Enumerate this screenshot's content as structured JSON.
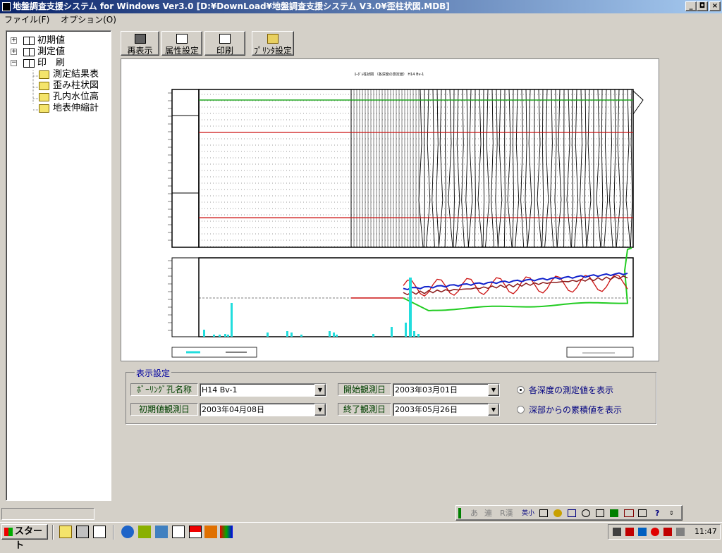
{
  "window": {
    "title": "地盤調査支援システム for Windows Ver3.0 [D:¥DownLoad¥地盤調査支援システム V3.0¥歪柱状図.MDB]",
    "controls": [
      "_",
      "◘",
      "×"
    ]
  },
  "menu": [
    {
      "label": "ファイル(F)"
    },
    {
      "label": "オプション(O)"
    }
  ],
  "tree": [
    {
      "label": "初期値",
      "expander": "+",
      "icon": "book-icon"
    },
    {
      "label": "測定値",
      "expander": "+",
      "icon": "book-icon"
    },
    {
      "label": "印　刷",
      "expander": "−",
      "icon": "book-icon"
    },
    {
      "label": "測定結果表",
      "icon": "folder-icon"
    },
    {
      "label": "歪み柱状図",
      "icon": "folder-icon",
      "selected": true
    },
    {
      "label": "孔内水位高",
      "icon": "folder-icon"
    },
    {
      "label": "地表伸縮計",
      "icon": "folder-icon"
    }
  ],
  "toolbar": {
    "redisplay": "再表示",
    "attributes": "属性設定",
    "print": "印刷",
    "printer": "ﾌﾟﾘﾝﾀ設定"
  },
  "settings": {
    "legend": "表示設定",
    "boring_label": "ﾎﾞｰﾘﾝｸﾞ孔名称",
    "boring_value": "H14 Bv-1",
    "start_label": "開始観測日",
    "start_value": "2003年03月01日",
    "initial_label": "初期値観測日",
    "initial_value": "2003年04月08日",
    "end_label": "終了観測日",
    "end_value": "2003年05月26日",
    "radio1": "各深度の測定値を表示",
    "radio2": "深部からの累積値を表示"
  },
  "plot": {
    "title": "ﾛｰﾀﾞﾑ柱状図 （各深度の測定値） H14 Bv-1"
  },
  "ime": {
    "items": [
      "あ",
      "連",
      "R漢",
      "英小"
    ]
  },
  "taskbar": {
    "start": "スタート",
    "clock": "11:47"
  },
  "colors": {
    "title_from": "#0a246a",
    "title_to": "#a6caf0",
    "series_green": "#22cc22",
    "series_red": "#cc1111",
    "series_blue": "#1122cc",
    "series_darkred": "#8b1a1a",
    "bars": "#22dddd"
  }
}
